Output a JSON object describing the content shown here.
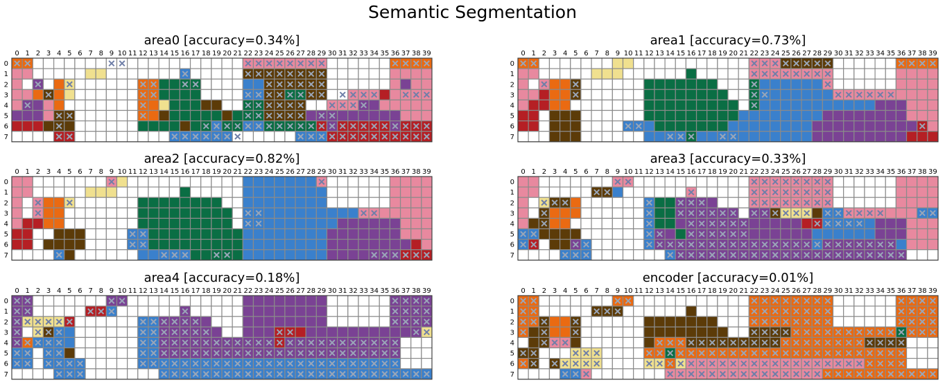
{
  "title": "Semantic Segmentation",
  "palette": {
    "0": "#ffffff",
    "1": "#e8899f",
    "2": "#ea6a12",
    "3": "#f0e08f",
    "4": "#5c3b08",
    "5": "#0a6e44",
    "6": "#3a80cc",
    "7": "#7a4294",
    "8": "#b51f24"
  },
  "chart_data": [
    {
      "type": "heatmap",
      "title": "area0 [accuracy=0.34%]",
      "x_ticks": [
        "0",
        "1",
        "2",
        "3",
        "4",
        "5",
        "6",
        "7",
        "8",
        "9",
        "10",
        "11",
        "12",
        "13",
        "14",
        "15",
        "16",
        "17",
        "18",
        "19",
        "20",
        "21",
        "22",
        "23",
        "24",
        "25",
        "26",
        "27",
        "28",
        "29",
        "30",
        "31",
        "32",
        "33",
        "34",
        "35",
        "36",
        "37",
        "38",
        "39"
      ],
      "y_ticks": [
        "0",
        "1",
        "2",
        "3",
        "4",
        "5",
        "6",
        "7"
      ],
      "grid": [
        "2200000000000000000000111111110000002222",
        "1100000330000000600000444444440000001111",
        "1070230000002255550000664444440000001711",
        "1124230000002255550000664455440011181111",
        "1771200000002235554400554444001117711111",
        "7771440000002245555545554444777777777111",
        "8884440000005555455655665555587888887888",
        "0000880000000006666660000006668888888888"
      ],
      "errors": [
        "1100000001100000000000111111110000001111",
        "0000000000000000100000111111110000000000",
        "0010010000001100110000001111110000000000",
        "0001000000001100000000111111110111100111",
        "0100000000001000000000111111001111000000",
        "0000110000001000000000111111011000000000",
        "0000100000000000001111111111111111111111",
        "0000110000000001111111000001111111111111"
      ]
    },
    {
      "type": "heatmap",
      "title": "area1 [accuracy=0.73%]",
      "x_ticks": [
        "0",
        "1",
        "2",
        "3",
        "4",
        "5",
        "6",
        "7",
        "8",
        "9",
        "10",
        "11",
        "12",
        "13",
        "14",
        "15",
        "16",
        "17",
        "18",
        "19",
        "20",
        "21",
        "22",
        "23",
        "24",
        "25",
        "26",
        "27",
        "28",
        "29",
        "30",
        "31",
        "32",
        "33",
        "34",
        "35",
        "36",
        "37",
        "38",
        "39"
      ],
      "y_ticks": [
        "0",
        "1",
        "2",
        "3",
        "4",
        "5",
        "6",
        "7"
      ],
      "grid": [
        "2200000003300000000000111444440000002222",
        "1100000333000000500000111111110000001111",
        "1012240000005555555000566666610000001111",
        "1182240000005555555500566666661111111111",
        "1882200000005555555550566666666666777111",
        "8804440000005555555556666666677777777111",
        "8804440000666555555566666666777777777781",
        "0004440000006666566666666666777777777888"
      ],
      "errors": [
        "1100000000000000000000111111110000001111",
        "0000000000000000000000111111110000000000",
        "0010010000000000000000100000010000000000",
        "0000010000000000000000110000001111110000",
        "0000000000000000000000100000000000000000",
        "0000000000000000000000000000000000000000",
        "0000000000110000000000000000000000000010",
        "0000000000000011100110000000000000000000"
      ]
    },
    {
      "type": "heatmap",
      "title": "area2 [accuracy=0.82%]",
      "x_ticks": [
        "0",
        "1",
        "2",
        "3",
        "4",
        "5",
        "6",
        "7",
        "8",
        "9",
        "10",
        "11",
        "12",
        "13",
        "14",
        "15",
        "16",
        "17",
        "18",
        "19",
        "20",
        "21",
        "22",
        "23",
        "24",
        "25",
        "26",
        "27",
        "28",
        "29",
        "30",
        "31",
        "32",
        "33",
        "34",
        "35",
        "36",
        "37",
        "38",
        "39"
      ],
      "y_ticks": [
        "0",
        "1",
        "2",
        "3",
        "4",
        "5",
        "6",
        "7"
      ],
      "grid": [
        "1100000001300000000000666666610000001111",
        "1100000333000000500000666666660000001111",
        "1012230000005555555500666666660000001111",
        "1012200000005555555550666666666661111111",
        "1882200000005555555550666666666777777111",
        "8800444000066555555555666666667777777111",
        "8804444000066555555555666666667777777781",
        "0000640000006666655555666666667777777888"
      ],
      "errors": [
        "0000000001000000000000000000010000000000",
        "0000000000000000000000000000000000000000",
        "0010010000000000000000000000000000000000",
        "0010000000000000000000110000000001100000",
        "0000000000000000000000110000000000000000",
        "0000000000011000000000000000000000000000",
        "0000000000011000000000000000000000000000",
        "0000100000000011100110000000000000111111"
      ]
    },
    {
      "type": "heatmap",
      "title": "area3 [accuracy=0.33%]",
      "x_ticks": [
        "0",
        "1",
        "2",
        "3",
        "4",
        "5",
        "6",
        "7",
        "8",
        "9",
        "10",
        "11",
        "12",
        "13",
        "14",
        "15",
        "16",
        "17",
        "18",
        "19",
        "20",
        "21",
        "22",
        "23",
        "24",
        "25",
        "26",
        "27",
        "28",
        "29",
        "30",
        "31",
        "32",
        "33",
        "34",
        "35",
        "36",
        "37",
        "38",
        "39"
      ],
      "y_ticks": [
        "0",
        "1",
        "2",
        "3",
        "4",
        "5",
        "6",
        "7"
      ],
      "grid": [
        "1100000001100000000000111111110000001111",
        "1100000446000000100000111111110000001111",
        "1034420000006557777000111111110000001111",
        "1042220000006557777770774333466111111166",
        "1442200000006557777777777778866666777111",
        "6644440000006775777777777777666666777111",
        "6804476000006777777777777777677777776111",
        "0000666000000067777777777777777777777000"
      ],
      "errors": [
        "0000000001100000000000111111110000000000",
        "0000000110000000100000111111110000000000",
        "0011100000001001110000111111110000000000",
        "0010000000001001111110111111011111100011",
        "0010000000001000111111000000111110000000",
        "1100000000001100111111000000000000000000",
        "1100011000001111111111111111111111110000",
        "0000111000000011111111111111111111111000"
      ]
    },
    {
      "type": "heatmap",
      "title": "area4 [accuracy=0.18%]",
      "x_ticks": [
        "0",
        "1",
        "2",
        "3",
        "4",
        "5",
        "6",
        "7",
        "8",
        "9",
        "10",
        "11",
        "12",
        "13",
        "14",
        "15",
        "16",
        "17",
        "18",
        "19",
        "20",
        "21",
        "22",
        "23",
        "24",
        "25",
        "26",
        "27",
        "28",
        "29",
        "30",
        "31",
        "32",
        "33",
        "34",
        "35",
        "36",
        "37",
        "38",
        "39"
      ],
      "y_ticks": [
        "0",
        "1",
        "2",
        "3",
        "4",
        "5",
        "6",
        "7"
      ],
      "grid": [
        "7700000007700000000000777777770000007777",
        "7700000886000000700000777777770000007777",
        "7333380000006677777000777777770000007777",
        "7034660000006677777700777888777777777773",
        "7266660000006677777777777877777777777000",
        "6606640000006677777777777777777777777000",
        "6606666000006666666666666666666666666000",
        "0000666000000066666666666666666666666666"
      ],
      "errors": [
        "1100000001100000000000000000000000001111",
        "1100000111000000100000000000000000001111",
        "1111110000001111110000000000000000001111",
        "1011100000001111111000000110000000000011",
        "1111100000001111111111111111111111111000",
        "1101100000001111111111111111111111111000",
        "1101111000001111111111111111111111111000",
        "0000111000000011111111111111111111111111"
      ]
    },
    {
      "type": "heatmap",
      "title": "encoder [accuracy=0.01%]",
      "x_ticks": [
        "0",
        "1",
        "2",
        "3",
        "4",
        "5",
        "6",
        "7",
        "8",
        "9",
        "10",
        "11",
        "12",
        "13",
        "14",
        "15",
        "16",
        "17",
        "18",
        "19",
        "20",
        "21",
        "22",
        "23",
        "24",
        "25",
        "26",
        "27",
        "28",
        "29",
        "30",
        "31",
        "32",
        "33",
        "34",
        "35",
        "36",
        "37",
        "38",
        "39"
      ],
      "y_ticks": [
        "0",
        "1",
        "2",
        "3",
        "4",
        "5",
        "6",
        "7"
      ],
      "grid": [
        "2200000002200000000000222222220000002222",
        "2200000444000000400000222222220000002222",
        "2242240000004444444000222222220000002222",
        "2442240000004444444400444422222222225222",
        "0441140000004222444444444222222224444000",
        "4400033300002252222222222222222222222000",
        "2404333300003323111111111111111112222000",
        "0000661000000011111111111111122222222222"
      ],
      "errors": [
        "1100000001100000000000111111110000001111",
        "1100000111000000000000111111110000001111",
        "1110010000000000000000111111110000001111",
        "1010010000000000000000111111111111111111",
        "0011100000000111111111111111111111111000",
        "1100011100001111111111111111111111111000",
        "1101111100001111111111111111111111111000",
        "0000111000000011111111111111111111111111"
      ]
    }
  ]
}
